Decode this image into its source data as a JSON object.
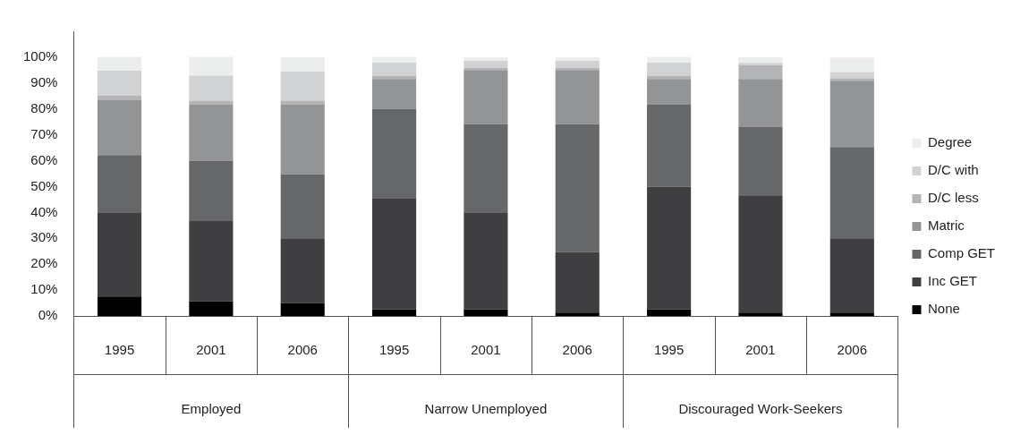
{
  "chart_data": {
    "type": "bar",
    "stacked": true,
    "categories": [
      "1995",
      "2001",
      "2006",
      "1995",
      "2001",
      "2006",
      "1995",
      "2001",
      "2006"
    ],
    "series": [
      {
        "name": "None",
        "color": "#000000",
        "values": [
          7.5,
          5.6,
          5.0,
          2.5,
          2.5,
          1.3,
          2.5,
          1.3,
          1.3
        ]
      },
      {
        "name": "Inc GET",
        "color": "#3f3f41",
        "values": [
          32.5,
          31.3,
          25.0,
          42.8,
          37.5,
          23.4,
          47.5,
          45.3,
          28.7
        ]
      },
      {
        "name": "Comp GET",
        "color": "#666769",
        "values": [
          22.2,
          23.1,
          24.7,
          34.7,
          34.1,
          49.4,
          31.6,
          26.6,
          35.3
        ]
      },
      {
        "name": "Matric",
        "color": "#939496",
        "values": [
          21.3,
          21.6,
          26.9,
          11.6,
          20.9,
          20.9,
          10.0,
          18.4,
          25.6
        ]
      },
      {
        "name": "D/C less",
        "color": "#b3b4b6",
        "values": [
          1.6,
          1.6,
          1.6,
          1.3,
          0.9,
          0.9,
          1.3,
          5.3,
          0.9
        ]
      },
      {
        "name": "D/C with",
        "color": "#d1d2d4",
        "values": [
          9.7,
          9.7,
          11.2,
          5.0,
          2.8,
          2.8,
          5.0,
          0.9,
          2.5
        ]
      },
      {
        "name": "Degree",
        "color": "#eceeed",
        "values": [
          5.3,
          7.2,
          5.6,
          2.2,
          1.3,
          1.3,
          2.2,
          2.2,
          5.6
        ]
      }
    ],
    "ylim": [
      0,
      110
    ],
    "yticks": [
      {
        "value": 0,
        "label": "0%"
      },
      {
        "value": 10,
        "label": "10%"
      },
      {
        "value": 20,
        "label": "20%"
      },
      {
        "value": 30,
        "label": "30%"
      },
      {
        "value": 40,
        "label": "40%"
      },
      {
        "value": 50,
        "label": "50%"
      },
      {
        "value": 60,
        "label": "60%"
      },
      {
        "value": 70,
        "label": "70%"
      },
      {
        "value": 80,
        "label": "80%"
      },
      {
        "value": 90,
        "label": "90%"
      },
      {
        "value": 100,
        "label": "100%"
      }
    ],
    "annotations": [
      "Employed",
      "Narrow Unemployed",
      "Discouraged Work-Seekers"
    ],
    "grid": false,
    "legend": "right"
  }
}
